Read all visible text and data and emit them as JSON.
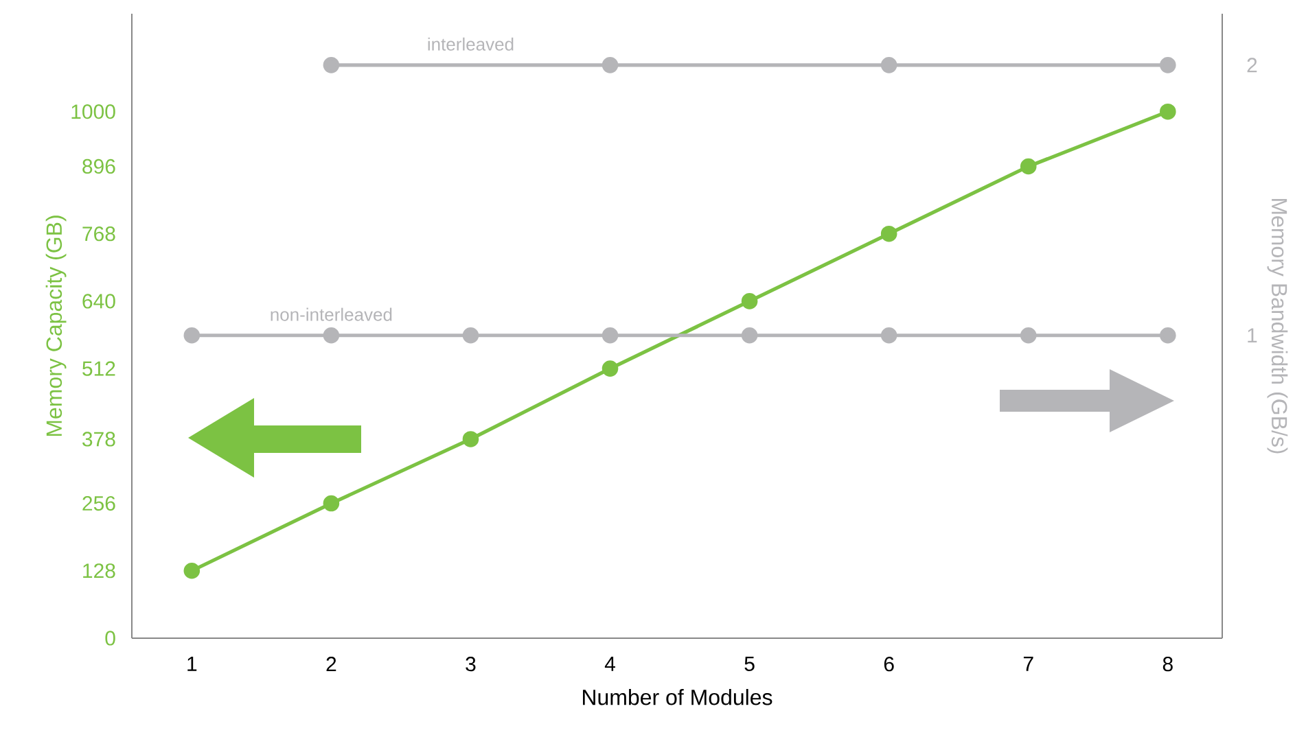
{
  "chart_data": {
    "type": "line",
    "xlabel": "Number of Modules",
    "ylabel": "Memory Capacity (GB)",
    "y2label": "Memory Bandwidth (GB/s)",
    "xlim": [
      0.57,
      8.39
    ],
    "xticks": [
      1,
      2,
      3,
      4,
      5,
      6,
      7,
      8
    ],
    "ylim": [
      0,
      1186
    ],
    "yticks": [
      0,
      128,
      256,
      378,
      512,
      640,
      768,
      896,
      1000
    ],
    "y2lim": [
      -0.12,
      2.19
    ],
    "y2ticks": [
      1,
      2
    ],
    "grid": false,
    "legend": false,
    "marker": "circle",
    "line_style": "solid",
    "series": [
      {
        "color": "#7cc243",
        "x": [
          1,
          2,
          3,
          4,
          5,
          6,
          7,
          8
        ],
        "values": [
          128,
          256,
          378,
          512,
          640,
          768,
          896,
          1000
        ]
      },
      {
        "name": "non-interleaved",
        "axis": "y2",
        "color": "#b5b5b8",
        "x": [
          1,
          2,
          3,
          4,
          5,
          6,
          7,
          8
        ],
        "values": [
          1,
          1,
          1,
          1,
          1,
          1,
          1,
          1
        ]
      },
      {
        "name": "interleaved",
        "axis": "y2",
        "color": "#b5b5b8",
        "x": [
          2,
          4,
          6,
          8
        ],
        "values": [
          2,
          2,
          2,
          2
        ]
      }
    ]
  }
}
